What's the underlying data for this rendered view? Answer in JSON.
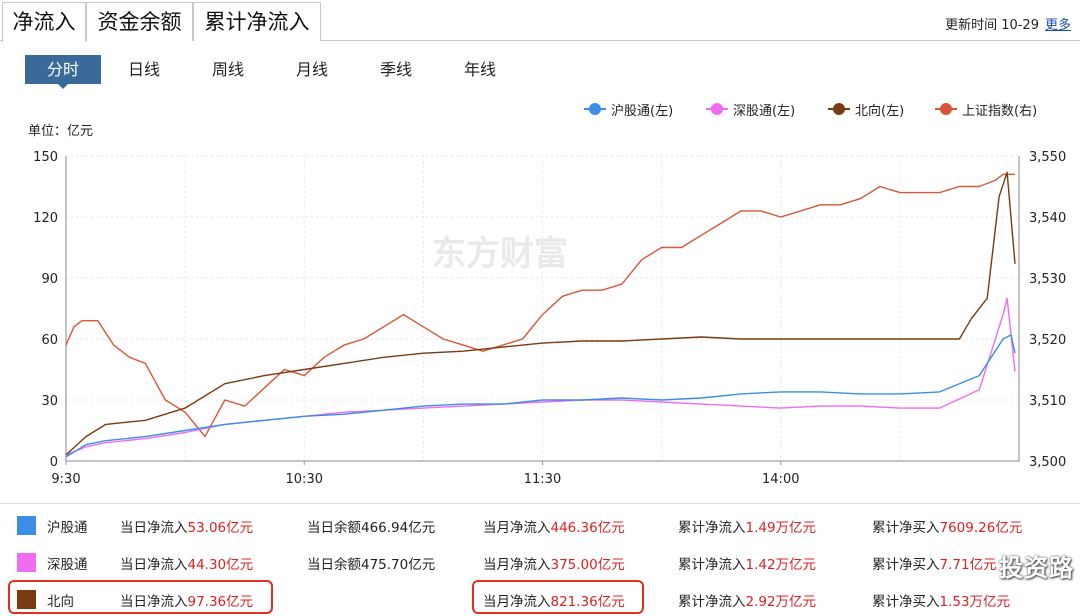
{
  "tabs": [
    {
      "label": "净流入",
      "active": true
    },
    {
      "label": "资金余额",
      "active": false
    },
    {
      "label": "累计净流入",
      "active": false
    }
  ],
  "updated": {
    "label": "更新时间 10-29",
    "more": "更多"
  },
  "periods": [
    {
      "label": "分时",
      "active": true
    },
    {
      "label": "日线",
      "active": false
    },
    {
      "label": "周线",
      "active": false
    },
    {
      "label": "月线",
      "active": false
    },
    {
      "label": "季线",
      "active": false
    },
    {
      "label": "年线",
      "active": false
    }
  ],
  "unit_label": "单位：亿元",
  "watermark": "东方财富",
  "colors": {
    "hgt": "#3a8ee6",
    "sgt": "#f06cf0",
    "north": "#7a3a10",
    "sh": "#d9563a"
  },
  "chart_data": {
    "type": "line",
    "x_ticks": [
      "9:30",
      "10:30",
      "11:30",
      "14:00"
    ],
    "ylim_left": [
      0,
      150
    ],
    "yticks_left": [
      "0",
      "30",
      "60",
      "90",
      "120",
      "150"
    ],
    "ylim_right": [
      3500,
      3550
    ],
    "yticks_right": [
      "3,500",
      "3,510",
      "3,520",
      "3,530",
      "3,540",
      "3,550"
    ],
    "x_minutes_total": 240,
    "legend": [
      {
        "name": "沪股通(左)",
        "key": "hgt"
      },
      {
        "name": "深股通(左)",
        "key": "sgt"
      },
      {
        "name": "北向(左)",
        "key": "north"
      },
      {
        "name": "上证指数(右)",
        "key": "sh"
      }
    ],
    "series": [
      {
        "name": "沪股通",
        "key": "hgt",
        "axis": "left",
        "points": [
          [
            0,
            2
          ],
          [
            5,
            8
          ],
          [
            10,
            10
          ],
          [
            20,
            12
          ],
          [
            30,
            15
          ],
          [
            40,
            18
          ],
          [
            50,
            20
          ],
          [
            60,
            22
          ],
          [
            70,
            23
          ],
          [
            80,
            25
          ],
          [
            90,
            27
          ],
          [
            100,
            28
          ],
          [
            110,
            28
          ],
          [
            120,
            30
          ],
          [
            130,
            30
          ],
          [
            140,
            31
          ],
          [
            150,
            30
          ],
          [
            160,
            31
          ],
          [
            170,
            33
          ],
          [
            180,
            34
          ],
          [
            190,
            34
          ],
          [
            200,
            33
          ],
          [
            210,
            33
          ],
          [
            220,
            34
          ],
          [
            230,
            42
          ],
          [
            236,
            60
          ],
          [
            238,
            62
          ],
          [
            239,
            53
          ]
        ]
      },
      {
        "name": "深股通",
        "key": "sgt",
        "axis": "left",
        "points": [
          [
            0,
            3
          ],
          [
            5,
            7
          ],
          [
            10,
            9
          ],
          [
            20,
            11
          ],
          [
            30,
            14
          ],
          [
            40,
            18
          ],
          [
            50,
            20
          ],
          [
            60,
            22
          ],
          [
            70,
            24
          ],
          [
            80,
            25
          ],
          [
            90,
            26
          ],
          [
            100,
            27
          ],
          [
            110,
            28
          ],
          [
            120,
            29
          ],
          [
            130,
            30
          ],
          [
            140,
            30
          ],
          [
            150,
            29
          ],
          [
            160,
            28
          ],
          [
            170,
            27
          ],
          [
            180,
            26
          ],
          [
            190,
            27
          ],
          [
            200,
            27
          ],
          [
            210,
            26
          ],
          [
            220,
            26
          ],
          [
            230,
            35
          ],
          [
            236,
            72
          ],
          [
            237,
            80
          ],
          [
            239,
            44
          ]
        ]
      },
      {
        "name": "北向",
        "key": "north",
        "axis": "left",
        "points": [
          [
            0,
            3
          ],
          [
            5,
            12
          ],
          [
            10,
            18
          ],
          [
            20,
            20
          ],
          [
            30,
            26
          ],
          [
            35,
            32
          ],
          [
            40,
            38
          ],
          [
            50,
            42
          ],
          [
            60,
            45
          ],
          [
            70,
            48
          ],
          [
            80,
            51
          ],
          [
            90,
            53
          ],
          [
            100,
            54
          ],
          [
            110,
            56
          ],
          [
            120,
            58
          ],
          [
            130,
            59
          ],
          [
            140,
            59
          ],
          [
            150,
            60
          ],
          [
            160,
            61
          ],
          [
            170,
            60
          ],
          [
            180,
            60
          ],
          [
            190,
            60
          ],
          [
            200,
            60
          ],
          [
            210,
            60
          ],
          [
            220,
            60
          ],
          [
            225,
            60
          ],
          [
            228,
            70
          ],
          [
            232,
            80
          ],
          [
            235,
            130
          ],
          [
            237,
            142
          ],
          [
            239,
            97
          ]
        ]
      },
      {
        "name": "上证指数",
        "key": "sh",
        "axis": "right",
        "points": [
          [
            0,
            3519
          ],
          [
            2,
            3522
          ],
          [
            4,
            3523
          ],
          [
            8,
            3523
          ],
          [
            12,
            3519
          ],
          [
            16,
            3517
          ],
          [
            20,
            3516
          ],
          [
            25,
            3510
          ],
          [
            30,
            3508
          ],
          [
            35,
            3504
          ],
          [
            40,
            3510
          ],
          [
            45,
            3509
          ],
          [
            50,
            3512
          ],
          [
            55,
            3515
          ],
          [
            60,
            3514
          ],
          [
            65,
            3517
          ],
          [
            70,
            3519
          ],
          [
            75,
            3520
          ],
          [
            80,
            3522
          ],
          [
            85,
            3524
          ],
          [
            90,
            3522
          ],
          [
            95,
            3520
          ],
          [
            100,
            3519
          ],
          [
            105,
            3518
          ],
          [
            110,
            3519
          ],
          [
            115,
            3520
          ],
          [
            120,
            3524
          ],
          [
            125,
            3527
          ],
          [
            130,
            3528
          ],
          [
            135,
            3528
          ],
          [
            140,
            3529
          ],
          [
            145,
            3533
          ],
          [
            150,
            3535
          ],
          [
            155,
            3535
          ],
          [
            160,
            3537
          ],
          [
            165,
            3539
          ],
          [
            170,
            3541
          ],
          [
            175,
            3541
          ],
          [
            180,
            3540
          ],
          [
            185,
            3541
          ],
          [
            190,
            3542
          ],
          [
            195,
            3542
          ],
          [
            200,
            3543
          ],
          [
            205,
            3545
          ],
          [
            210,
            3544
          ],
          [
            215,
            3544
          ],
          [
            220,
            3544
          ],
          [
            225,
            3545
          ],
          [
            230,
            3545
          ],
          [
            234,
            3546
          ],
          [
            236,
            3547
          ],
          [
            238,
            3547
          ],
          [
            239,
            3547
          ]
        ]
      }
    ]
  },
  "stats": [
    {
      "key": "hgt",
      "name": "沪股通",
      "today_label": "当日净流入",
      "today_value": "53.06亿元",
      "balance_label": "当日余额",
      "balance_value": "466.94亿元",
      "month_label": "当月净流入",
      "month_value": "446.36亿元",
      "cum_in_label": "累计净流入",
      "cum_in_value": "1.49万亿元",
      "cum_buy_label": "累计净买入",
      "cum_buy_value": "7609.26亿元"
    },
    {
      "key": "sgt",
      "name": "深股通",
      "today_label": "当日净流入",
      "today_value": "44.30亿元",
      "balance_label": "当日余额",
      "balance_value": "475.70亿元",
      "month_label": "当月净流入",
      "month_value": "375.00亿元",
      "cum_in_label": "累计净流入",
      "cum_in_value": "1.42万亿元",
      "cum_buy_label": "累计净买入",
      "cum_buy_value": "7.71亿元"
    },
    {
      "key": "north",
      "name": "北向",
      "today_label": "当日净流入",
      "today_value": "97.36亿元",
      "balance_label": "",
      "balance_value": "",
      "month_label": "当月净流入",
      "month_value": "821.36亿元",
      "cum_in_label": "累计净流入",
      "cum_in_value": "2.92万亿元",
      "cum_buy_label": "累计净买入",
      "cum_buy_value": "1.53万亿元"
    }
  ],
  "corner_watermark": "投资路"
}
